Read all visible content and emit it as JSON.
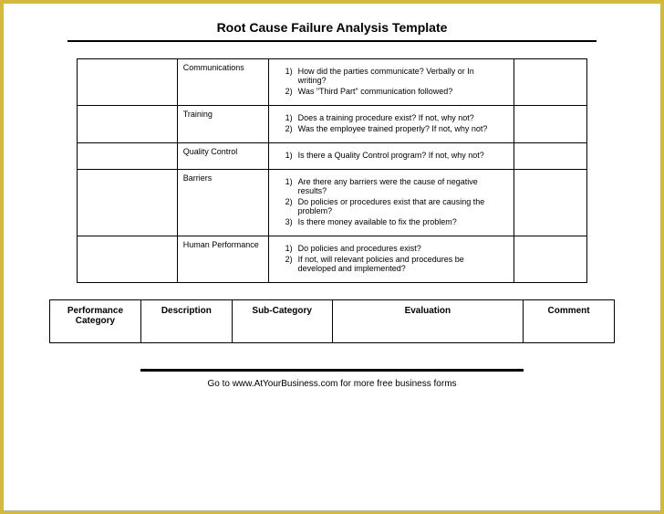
{
  "title": "Root Cause Failure Analysis Template",
  "rows": [
    {
      "category": "Communications",
      "items": [
        "How did the parties communicate? Verbally or In writing?",
        "Was \"Third Part\" communication followed?"
      ]
    },
    {
      "category": "Training",
      "items": [
        "Does a training procedure exist? If not, why not?",
        "Was the employee trained properly? If not, why not?"
      ]
    },
    {
      "category": "Quality Control",
      "items": [
        "Is there a Quality Control program? If not, why not?"
      ]
    },
    {
      "category": "Barriers",
      "items": [
        "Are there any barriers were the cause of negative results?",
        "Do policies or procedures exist that are causing the problem?",
        "Is there money available to fix the problem?"
      ]
    },
    {
      "category": "Human Performance",
      "items": [
        "Do policies and procedures exist?",
        "If not, will relevant policies and procedures be developed and implemented?"
      ]
    }
  ],
  "headers": {
    "c1": "Performance Category",
    "c2": "Description",
    "c3": "Sub-Category",
    "c4": "Evaluation",
    "c5": "Comment"
  },
  "footer": "Go to www.AtYourBusiness.com for more free business forms"
}
